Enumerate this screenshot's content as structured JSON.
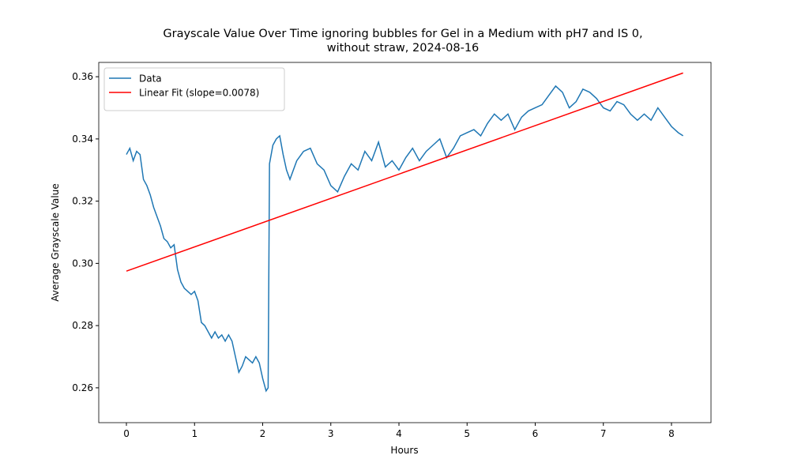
{
  "chart_data": {
    "type": "line",
    "title": [
      "Grayscale Value Over Time ignoring bubbles for Gel in a Medium with pH7 and IS 0,",
      "without straw, 2024-08-16"
    ],
    "x_label": "Hours",
    "y_label": "Average Grayscale Value",
    "xlim": [
      -0.406,
      8.58
    ],
    "ylim": [
      0.2488,
      0.3646
    ],
    "xticks": [
      0,
      1,
      2,
      3,
      4,
      5,
      6,
      7,
      8
    ],
    "yticks": [
      0.26,
      0.28,
      {
        "value": 0.3,
        "label": "0.30"
      },
      0.32,
      0.34,
      0.36
    ],
    "legend": "upper left",
    "series": [
      {
        "name": "Data",
        "color": "#1f77b4",
        "x": [
          0,
          0.05,
          0.1,
          0.15,
          0.2,
          0.25,
          0.3,
          0.35,
          0.4,
          0.45,
          0.5,
          0.55,
          0.6,
          0.65,
          0.7,
          0.75,
          0.8,
          0.85,
          0.9,
          0.95,
          1.0,
          1.05,
          1.1,
          1.15,
          1.2,
          1.25,
          1.3,
          1.35,
          1.4,
          1.45,
          1.5,
          1.55,
          1.6,
          1.65,
          1.7,
          1.75,
          1.8,
          1.85,
          1.9,
          1.95,
          2.0,
          2.05,
          2.08,
          2.1,
          2.15,
          2.2,
          2.25,
          2.3,
          2.35,
          2.4,
          2.5,
          2.6,
          2.7,
          2.8,
          2.9,
          3.0,
          3.1,
          3.2,
          3.3,
          3.4,
          3.5,
          3.6,
          3.7,
          3.8,
          3.9,
          4.0,
          4.1,
          4.2,
          4.3,
          4.4,
          4.5,
          4.6,
          4.7,
          4.8,
          4.9,
          5.0,
          5.1,
          5.2,
          5.3,
          5.4,
          5.5,
          5.6,
          5.7,
          5.8,
          5.9,
          6.0,
          6.1,
          6.2,
          6.3,
          6.4,
          6.5,
          6.6,
          6.7,
          6.8,
          6.9,
          7.0,
          7.1,
          7.2,
          7.3,
          7.4,
          7.5,
          7.6,
          7.7,
          7.8,
          7.9,
          8.0,
          8.1,
          8.17
        ],
        "values": [
          0.335,
          0.337,
          0.333,
          0.336,
          0.335,
          0.327,
          0.325,
          0.322,
          0.318,
          0.315,
          0.312,
          0.308,
          0.307,
          0.305,
          0.306,
          0.298,
          0.294,
          0.292,
          0.291,
          0.29,
          0.291,
          0.288,
          0.281,
          0.28,
          0.278,
          0.276,
          0.278,
          0.276,
          0.277,
          0.275,
          0.277,
          0.275,
          0.27,
          0.265,
          0.267,
          0.27,
          0.269,
          0.268,
          0.27,
          0.268,
          0.263,
          0.259,
          0.26,
          0.332,
          0.338,
          0.34,
          0.341,
          0.335,
          0.33,
          0.327,
          0.333,
          0.336,
          0.337,
          0.332,
          0.33,
          0.325,
          0.323,
          0.328,
          0.332,
          0.33,
          0.336,
          0.333,
          0.339,
          0.331,
          0.333,
          0.33,
          0.334,
          0.337,
          0.333,
          0.336,
          0.338,
          0.34,
          0.334,
          0.337,
          0.341,
          0.342,
          0.343,
          0.341,
          0.345,
          0.348,
          0.346,
          0.348,
          0.343,
          0.347,
          0.349,
          0.35,
          0.351,
          0.354,
          0.357,
          0.355,
          0.35,
          0.352,
          0.356,
          0.355,
          0.353,
          0.35,
          0.349,
          0.352,
          0.351,
          0.348,
          0.346,
          0.348,
          0.346,
          0.35,
          0.347,
          0.344,
          0.342,
          0.341
        ]
      },
      {
        "name": "Linear Fit (slope=0.0078)",
        "color": "#ff0000",
        "x": [
          0,
          8.17
        ],
        "values": [
          0.2975,
          0.3612
        ]
      }
    ]
  }
}
